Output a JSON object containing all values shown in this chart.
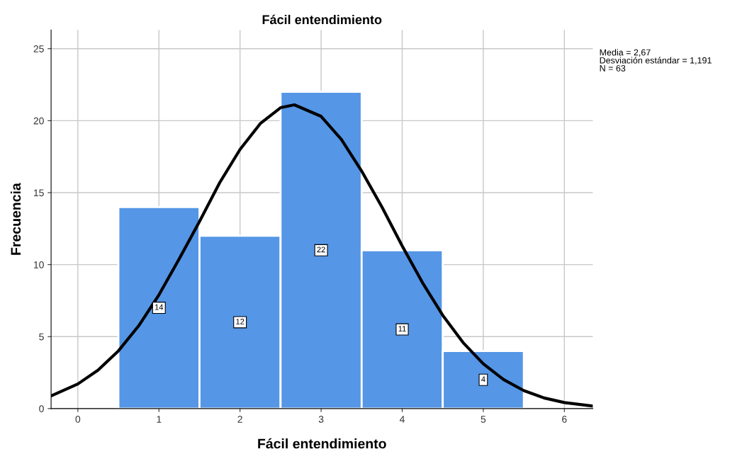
{
  "chart_data": {
    "type": "histogram",
    "title": "Fácil entendimiento",
    "xlabel": "Fácil entendimiento",
    "ylabel": "Frecuencia",
    "bins": [
      0.5,
      1.5,
      2.5,
      3.5,
      4.5,
      5.5
    ],
    "values": [
      14,
      12,
      22,
      11,
      4
    ],
    "color": "#5596e6",
    "value_labels": [
      "14",
      "12",
      "22",
      "11",
      "4"
    ],
    "series": [
      {
        "type": "line",
        "color": "#000000",
        "x": [
          -0.33,
          0,
          0.25,
          0.5,
          0.75,
          1,
          1.25,
          1.5,
          1.75,
          2,
          2.25,
          2.5,
          2.67,
          3,
          3.25,
          3.5,
          3.75,
          4,
          4.25,
          4.5,
          4.75,
          5,
          5.25,
          5.5,
          5.75,
          6,
          6.35
        ],
        "values": [
          0.88,
          1.71,
          2.68,
          4.01,
          5.75,
          7.9,
          10.4,
          13.0,
          15.7,
          18.0,
          19.8,
          20.9,
          21.1,
          20.3,
          18.7,
          16.5,
          14.0,
          11.3,
          8.75,
          6.48,
          4.59,
          3.11,
          2.02,
          1.25,
          0.74,
          0.42,
          0.18
        ]
      }
    ],
    "xlim": [
      -0.33,
      6.35
    ],
    "xticks": [
      0,
      1,
      2,
      3,
      4,
      5,
      6
    ],
    "ylim": [
      0,
      26.3
    ],
    "yticks": [
      0,
      5,
      10,
      15,
      20,
      25
    ],
    "grid": true,
    "legend": false,
    "annotations": [
      "Media = 2,67\nDesviación estándar = 1,191\nN = 63"
    ]
  }
}
